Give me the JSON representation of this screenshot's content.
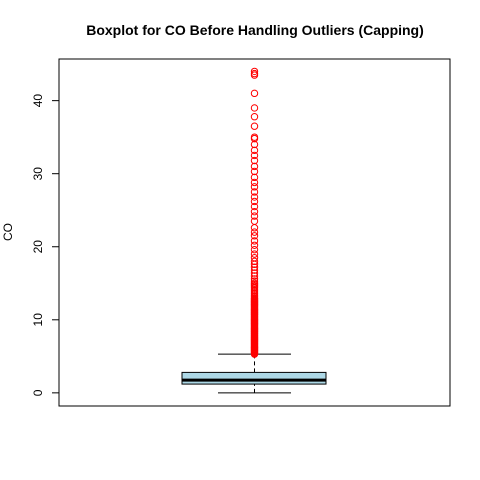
{
  "chart_data": {
    "type": "boxplot",
    "title": "Boxplot for CO Before Handling Outliers (Capping)",
    "xlabel": "",
    "ylabel": "CO",
    "ylim": [
      -1.8,
      45.7
    ],
    "y_ticks": [
      0,
      10,
      20,
      30,
      40
    ],
    "y_tick_labels": [
      "0",
      "10",
      "20",
      "30",
      "40"
    ],
    "grid": false,
    "box": {
      "min": 0.0,
      "q1": 1.2,
      "median": 1.75,
      "q3": 2.8,
      "max": 5.3,
      "fill_color": "#add8e6"
    },
    "outliers": [
      5.3,
      5.4,
      5.5,
      5.6,
      5.7,
      5.8,
      5.9,
      6.0,
      6.1,
      6.2,
      6.3,
      6.4,
      6.5,
      6.6,
      6.7,
      6.8,
      6.9,
      7.0,
      7.1,
      7.2,
      7.3,
      7.4,
      7.5,
      7.6,
      7.7,
      7.8,
      7.9,
      8.0,
      8.1,
      8.2,
      8.3,
      8.4,
      8.5,
      8.6,
      8.7,
      8.8,
      8.9,
      9.0,
      9.1,
      9.2,
      9.3,
      9.4,
      9.5,
      9.6,
      9.7,
      9.8,
      9.9,
      10.0,
      10.1,
      10.2,
      10.3,
      10.4,
      10.5,
      10.6,
      10.7,
      10.8,
      10.9,
      11.0,
      11.1,
      11.2,
      11.3,
      11.4,
      11.5,
      11.6,
      11.7,
      11.8,
      11.9,
      12.0,
      12.1,
      12.2,
      12.3,
      12.4,
      12.5,
      12.6,
      12.7,
      12.8,
      12.9,
      13.0,
      13.2,
      13.4,
      13.6,
      13.8,
      14.0,
      14.2,
      14.4,
      14.6,
      14.8,
      15.0,
      15.3,
      15.6,
      16.0,
      16.4,
      16.8,
      17.2,
      17.6,
      18.0,
      18.5,
      19.0,
      19.6,
      20.2,
      20.8,
      21.5,
      22.0,
      22.6,
      23.5,
      24.2,
      24.8,
      25.5,
      26.2,
      26.8,
      27.5,
      28.2,
      28.8,
      29.5,
      30.3,
      31.0,
      31.8,
      32.5,
      33.2,
      34.0,
      34.8,
      35.0,
      36.5,
      37.8,
      39.0,
      41.0,
      43.5,
      43.7,
      44.0
    ],
    "outlier_color": "#ff0000"
  }
}
